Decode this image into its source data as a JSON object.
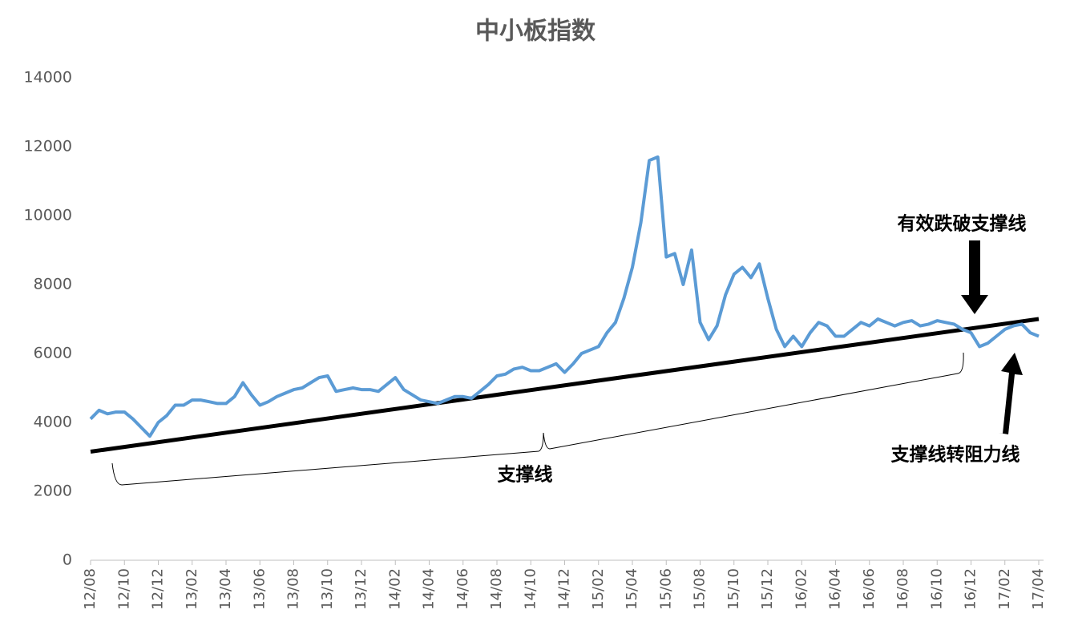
{
  "chart_data": {
    "type": "line",
    "title": "中小板指数",
    "categories": [
      "12/08",
      null,
      null,
      null,
      "12/10",
      null,
      null,
      null,
      "12/12",
      null,
      null,
      null,
      "13/02",
      null,
      null,
      null,
      "13/04",
      null,
      null,
      null,
      "13/06",
      null,
      null,
      null,
      "13/08",
      null,
      null,
      null,
      "13/10",
      null,
      null,
      null,
      "13/12",
      null,
      null,
      null,
      "14/02",
      null,
      null,
      null,
      "14/04",
      null,
      null,
      null,
      "14/06",
      null,
      null,
      null,
      "14/08",
      null,
      null,
      null,
      "14/10",
      null,
      null,
      null,
      "14/12",
      null,
      null,
      null,
      "15/02",
      null,
      null,
      null,
      "15/04",
      null,
      null,
      null,
      "15/06",
      null,
      null,
      null,
      "15/08",
      null,
      null,
      null,
      "15/10",
      null,
      null,
      null,
      "15/12",
      null,
      null,
      null,
      "16/02",
      null,
      null,
      null,
      "16/04",
      null,
      null,
      null,
      "16/06",
      null,
      null,
      null,
      "16/08",
      null,
      null,
      null,
      "16/10",
      null,
      null,
      null,
      "16/12",
      null,
      null,
      null,
      "17/02",
      null,
      null,
      null,
      "17/04"
    ],
    "series": [
      {
        "color": "#5b9bd5",
        "values": [
          4100,
          4350,
          4250,
          4300,
          4300,
          4100,
          3850,
          3600,
          4000,
          4200,
          4500,
          4500,
          4650,
          4650,
          4600,
          4550,
          4550,
          4750,
          5150,
          4800,
          4500,
          4600,
          4750,
          4850,
          4950,
          5000,
          5150,
          5300,
          5350,
          4900,
          4950,
          5000,
          4950,
          4950,
          4900,
          5100,
          5300,
          4950,
          4800,
          4650,
          4600,
          4550,
          4650,
          4750,
          4750,
          4700,
          4900,
          5100,
          5350,
          5400,
          5550,
          5600,
          5500,
          5500,
          5600,
          5700,
          5450,
          5700,
          6000,
          6100,
          6200,
          6600,
          6900,
          7600,
          8500,
          9800,
          11600,
          11700,
          8800,
          8900,
          8000,
          9000,
          6900,
          6400,
          6800,
          7700,
          8300,
          8500,
          8200,
          8600,
          7600,
          6700,
          6200,
          6500,
          6200,
          6600,
          6900,
          6800,
          6500,
          6500,
          6700,
          6900,
          6800,
          7000,
          6900,
          6800,
          6900,
          6950,
          6800,
          6850,
          6950,
          6900,
          6850,
          6700,
          6600,
          6200,
          6300,
          6500,
          6700,
          6800,
          6850,
          6600,
          6500
        ]
      },
      {
        "color": "#000000",
        "values": [
          3150,
          null,
          null,
          null,
          null,
          null,
          null,
          null,
          null,
          null,
          null,
          null,
          null,
          null,
          null,
          null,
          null,
          null,
          null,
          null,
          null,
          null,
          null,
          null,
          null,
          null,
          null,
          null,
          null,
          null,
          null,
          null,
          null,
          null,
          null,
          null,
          null,
          null,
          null,
          null,
          null,
          null,
          null,
          null,
          null,
          null,
          null,
          null,
          null,
          null,
          null,
          null,
          null,
          null,
          null,
          null,
          null,
          null,
          null,
          null,
          null,
          null,
          null,
          null,
          null,
          null,
          null,
          null,
          null,
          null,
          null,
          null,
          null,
          null,
          null,
          null,
          null,
          null,
          null,
          null,
          null,
          null,
          null,
          null,
          null,
          null,
          null,
          null,
          null,
          null,
          null,
          null,
          null,
          null,
          null,
          null,
          null,
          null,
          null,
          null,
          null,
          null,
          null,
          null,
          null,
          null,
          null,
          null,
          null,
          null,
          null,
          null,
          7000
        ]
      }
    ],
    "ylim": [
      0,
      14000
    ],
    "yticks": [
      0,
      2000,
      4000,
      6000,
      8000,
      10000,
      12000,
      14000
    ],
    "annotations": [
      "支撑线",
      "有效跌破支撑线",
      "支撑线转阻力线"
    ]
  }
}
